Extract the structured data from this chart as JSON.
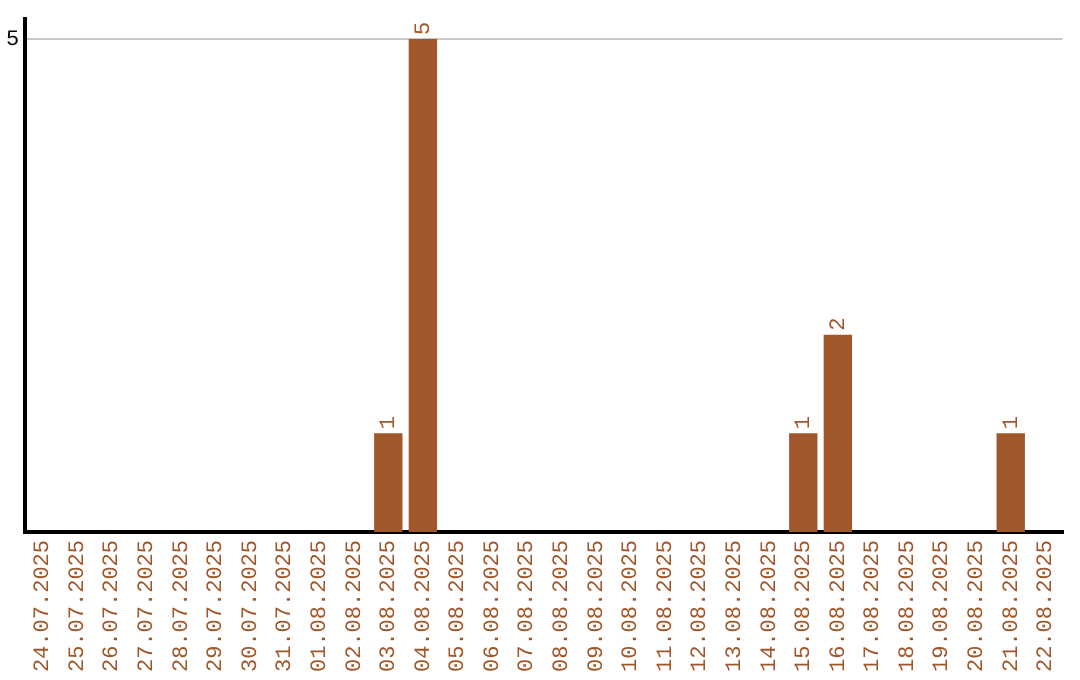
{
  "chart_data": {
    "type": "bar",
    "categories": [
      "24.07.2025",
      "25.07.2025",
      "26.07.2025",
      "27.07.2025",
      "28.07.2025",
      "29.07.2025",
      "30.07.2025",
      "31.07.2025",
      "01.08.2025",
      "02.08.2025",
      "03.08.2025",
      "04.08.2025",
      "05.08.2025",
      "06.08.2025",
      "07.08.2025",
      "08.08.2025",
      "09.08.2025",
      "10.08.2025",
      "11.08.2025",
      "12.08.2025",
      "13.08.2025",
      "14.08.2025",
      "15.08.2025",
      "16.08.2025",
      "17.08.2025",
      "18.08.2025",
      "19.08.2025",
      "20.08.2025",
      "21.08.2025",
      "22.08.2025"
    ],
    "values": [
      0,
      0,
      0,
      0,
      0,
      0,
      0,
      0,
      0,
      0,
      1,
      5,
      0,
      0,
      0,
      0,
      0,
      0,
      0,
      0,
      0,
      0,
      1,
      2,
      0,
      0,
      0,
      0,
      1,
      0
    ],
    "value_labels": [
      null,
      null,
      null,
      null,
      null,
      null,
      null,
      null,
      null,
      null,
      "1",
      "5",
      null,
      null,
      null,
      null,
      null,
      null,
      null,
      null,
      null,
      null,
      "1",
      "2",
      null,
      null,
      null,
      null,
      "1",
      null
    ],
    "color": "#a0572a",
    "ylim": [
      0,
      5.2
    ],
    "yticks": [
      5
    ],
    "grid": "y",
    "legend": false
  }
}
